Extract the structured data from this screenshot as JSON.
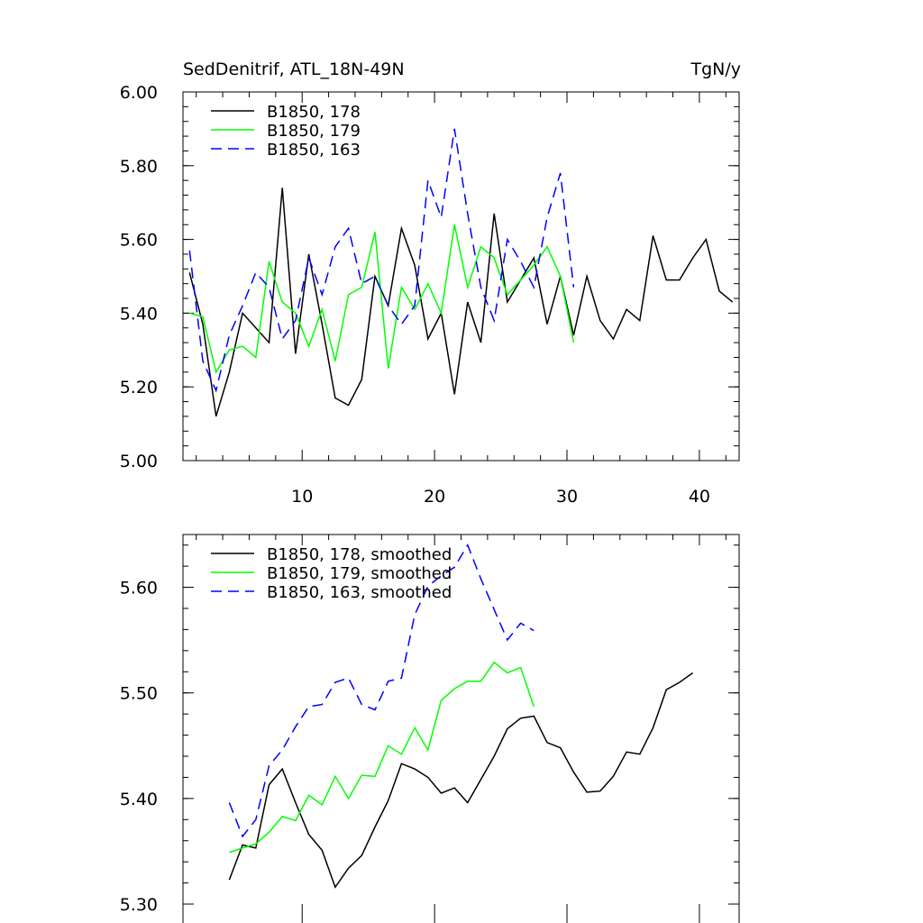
{
  "chart_data": [
    {
      "type": "line",
      "title": "SedDenitrif, ATL_18N-49N",
      "units": "TgN/y",
      "xlabel": "",
      "ylabel": "",
      "xlim": [
        1,
        43
      ],
      "ylim": [
        5.0,
        6.0
      ],
      "x_ticks": [
        "10",
        "20",
        "30",
        "40"
      ],
      "y_ticks": [
        "5.00",
        "5.20",
        "5.40",
        "5.60",
        "5.80",
        "6.00"
      ],
      "legend_position": "top-left",
      "grid": false,
      "series": [
        {
          "name": "B1850, 178",
          "color": "#000000",
          "dash": "solid",
          "x_start": 1.5,
          "values": [
            5.51,
            5.37,
            5.12,
            5.24,
            5.4,
            5.36,
            5.32,
            5.74,
            5.29,
            5.56,
            5.37,
            5.17,
            5.15,
            5.22,
            5.5,
            5.42,
            5.63,
            5.53,
            5.33,
            5.4,
            5.18,
            5.43,
            5.32,
            5.67,
            5.43,
            5.49,
            5.55,
            5.37,
            5.5,
            5.34,
            5.5,
            5.38,
            5.33,
            5.41,
            5.38,
            5.61,
            5.49,
            5.49,
            5.55,
            5.6,
            5.46,
            5.43
          ]
        },
        {
          "name": "B1850, 179",
          "color": "#00ff00",
          "dash": "solid",
          "x_start": 1.5,
          "values": [
            5.4,
            5.39,
            5.24,
            5.3,
            5.31,
            5.28,
            5.54,
            5.43,
            5.4,
            5.31,
            5.41,
            5.27,
            5.45,
            5.47,
            5.62,
            5.25,
            5.47,
            5.41,
            5.48,
            5.4,
            5.64,
            5.47,
            5.58,
            5.55,
            5.45,
            5.49,
            5.53,
            5.58,
            5.5,
            5.32
          ]
        },
        {
          "name": "B1850, 163",
          "color": "#0000ff",
          "dash": "dashed",
          "x_start": 1.5,
          "values": [
            5.57,
            5.27,
            5.19,
            5.34,
            5.42,
            5.51,
            5.47,
            5.33,
            5.38,
            5.55,
            5.45,
            5.58,
            5.63,
            5.48,
            5.5,
            5.42,
            5.37,
            5.42,
            5.76,
            5.66,
            5.9,
            5.67,
            5.47,
            5.38,
            5.6,
            5.54,
            5.47,
            5.66,
            5.78,
            5.47
          ]
        }
      ]
    },
    {
      "type": "line",
      "title": "",
      "xlabel": "",
      "ylabel": "",
      "xlim": [
        1,
        43
      ],
      "ylim": [
        5.3,
        5.65
      ],
      "y_ticks": [
        "5.30",
        "5.40",
        "5.50",
        "5.60"
      ],
      "legend_position": "top-left",
      "grid": false,
      "series": [
        {
          "name": "B1850, 178, smoothed",
          "color": "#000000",
          "dash": "solid",
          "x_start": 4.5,
          "values": [
            5.323,
            5.356,
            5.353,
            5.413,
            5.428,
            5.396,
            5.366,
            5.351,
            5.316,
            5.334,
            5.346,
            5.373,
            5.398,
            5.433,
            5.428,
            5.42,
            5.405,
            5.41,
            5.396,
            5.418,
            5.44,
            5.466,
            5.476,
            5.478,
            5.453,
            5.448,
            5.425,
            5.406,
            5.407,
            5.421,
            5.444,
            5.442,
            5.467,
            5.503,
            5.51,
            5.519
          ]
        },
        {
          "name": "B1850, 179, smoothed",
          "color": "#00ff00",
          "dash": "solid",
          "x_start": 4.5,
          "values": [
            5.349,
            5.353,
            5.357,
            5.368,
            5.383,
            5.379,
            5.403,
            5.394,
            5.421,
            5.4,
            5.422,
            5.421,
            5.45,
            5.442,
            5.467,
            5.446,
            5.493,
            5.504,
            5.511,
            5.511,
            5.529,
            5.519,
            5.524,
            5.487
          ]
        },
        {
          "name": "B1850, 163, smoothed",
          "color": "#0000ff",
          "dash": "dashed",
          "x_start": 4.5,
          "values": [
            5.396,
            5.364,
            5.38,
            5.431,
            5.446,
            5.468,
            5.487,
            5.489,
            5.51,
            5.514,
            5.489,
            5.484,
            5.511,
            5.514,
            5.574,
            5.601,
            5.611,
            5.619,
            5.64,
            5.608,
            5.579,
            5.55,
            5.566,
            5.559
          ]
        }
      ]
    }
  ]
}
